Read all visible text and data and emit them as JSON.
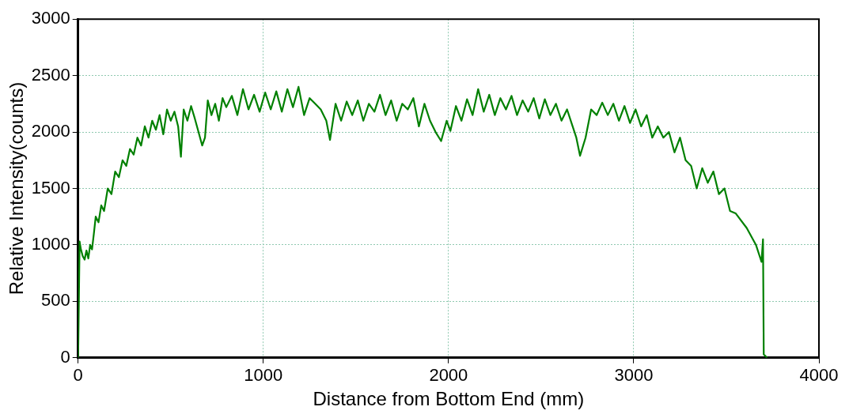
{
  "chart_data": {
    "type": "line",
    "xlabel": "Distance from Bottom End (mm)",
    "ylabel": "Relative Intensity(counts)",
    "xlim": [
      0,
      4000
    ],
    "xticks": [
      0,
      1000,
      2000,
      3000,
      4000
    ],
    "ylim": [
      0,
      3000
    ],
    "yticks": [
      0,
      500,
      1000,
      1500,
      2000,
      2500,
      3000
    ],
    "grid": true,
    "legend": false,
    "marker": "none",
    "line_style": "solid",
    "series": [
      {
        "color": "#008000",
        "x": [
          0,
          8,
          15,
          25,
          35,
          45,
          55,
          65,
          75,
          85,
          95,
          110,
          125,
          140,
          160,
          180,
          200,
          220,
          240,
          260,
          280,
          300,
          320,
          340,
          360,
          380,
          400,
          420,
          440,
          460,
          480,
          500,
          520,
          540,
          555,
          570,
          590,
          610,
          630,
          650,
          670,
          685,
          700,
          720,
          740,
          760,
          780,
          800,
          830,
          860,
          890,
          920,
          950,
          980,
          1010,
          1040,
          1070,
          1100,
          1130,
          1160,
          1190,
          1220,
          1250,
          1280,
          1310,
          1340,
          1360,
          1390,
          1420,
          1450,
          1480,
          1510,
          1540,
          1570,
          1600,
          1630,
          1660,
          1690,
          1720,
          1750,
          1780,
          1810,
          1840,
          1870,
          1900,
          1930,
          1960,
          1990,
          2010,
          2040,
          2070,
          2100,
          2130,
          2160,
          2190,
          2220,
          2250,
          2280,
          2310,
          2340,
          2370,
          2400,
          2430,
          2460,
          2490,
          2520,
          2550,
          2580,
          2610,
          2640,
          2670,
          2690,
          2710,
          2740,
          2770,
          2800,
          2830,
          2860,
          2890,
          2920,
          2950,
          2980,
          3010,
          3040,
          3070,
          3100,
          3130,
          3160,
          3190,
          3220,
          3250,
          3280,
          3310,
          3340,
          3370,
          3400,
          3430,
          3460,
          3490,
          3520,
          3550,
          3610,
          3660,
          3680,
          3690,
          3698,
          3702,
          3720
        ],
        "values": [
          0,
          1030,
          960,
          900,
          870,
          950,
          880,
          1000,
          960,
          1100,
          1250,
          1200,
          1350,
          1300,
          1500,
          1450,
          1650,
          1600,
          1750,
          1700,
          1850,
          1800,
          1950,
          1880,
          2050,
          1950,
          2100,
          2020,
          2150,
          1980,
          2200,
          2100,
          2180,
          2050,
          1780,
          2200,
          2100,
          2230,
          2120,
          2000,
          1880,
          1950,
          2280,
          2150,
          2250,
          2100,
          2300,
          2220,
          2320,
          2150,
          2380,
          2200,
          2330,
          2180,
          2350,
          2200,
          2360,
          2180,
          2380,
          2220,
          2400,
          2150,
          2300,
          2250,
          2200,
          2100,
          1930,
          2250,
          2100,
          2270,
          2150,
          2280,
          2100,
          2250,
          2180,
          2330,
          2150,
          2280,
          2100,
          2250,
          2200,
          2300,
          2050,
          2250,
          2100,
          2000,
          1920,
          2100,
          2010,
          2230,
          2100,
          2290,
          2150,
          2380,
          2180,
          2330,
          2150,
          2300,
          2200,
          2320,
          2150,
          2280,
          2180,
          2300,
          2120,
          2290,
          2150,
          2250,
          2100,
          2200,
          2050,
          1950,
          1790,
          1950,
          2200,
          2150,
          2260,
          2150,
          2250,
          2100,
          2230,
          2080,
          2200,
          2050,
          2150,
          1950,
          2050,
          1950,
          2000,
          1820,
          1950,
          1750,
          1700,
          1500,
          1680,
          1550,
          1650,
          1450,
          1500,
          1300,
          1280,
          1150,
          1000,
          900,
          850,
          1050,
          30,
          0
        ]
      }
    ]
  }
}
